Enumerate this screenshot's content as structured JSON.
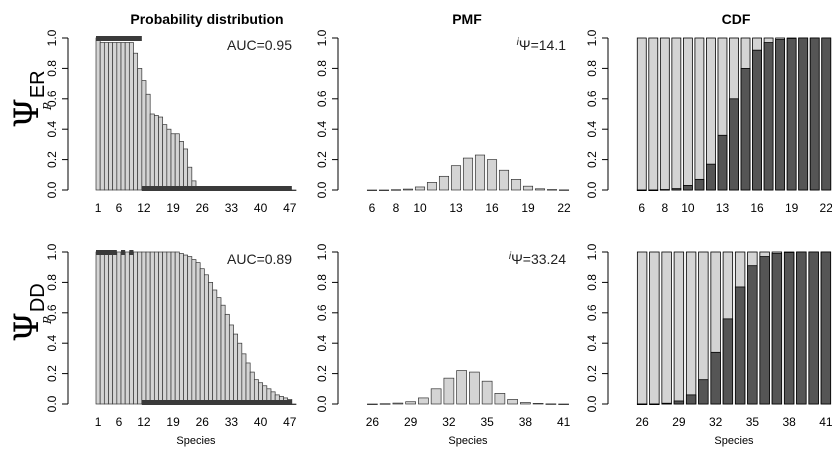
{
  "rows": [
    {
      "symbol": "Ψ",
      "subscript": "ER",
      "p_label": "P"
    },
    {
      "symbol": "Ψ",
      "subscript": "DD",
      "p_label": "P"
    }
  ],
  "chart_data": [
    {
      "id": "prob-er",
      "type": "bar",
      "title": "Probability distribution",
      "xlabel": "",
      "ylabel": "",
      "ylim": [
        0,
        1
      ],
      "yticks": [
        "0.0",
        "0.2",
        "0.4",
        "0.6",
        "0.8",
        "1.0"
      ],
      "xticks": [
        "1",
        "6",
        "12",
        "19",
        "26",
        "33",
        "40",
        "47"
      ],
      "annotation": "AUC=0.95",
      "species": [
        1,
        48
      ],
      "values": [
        1.0,
        0.97,
        0.97,
        0.97,
        0.97,
        0.97,
        0.97,
        0.97,
        0.97,
        0.9,
        0.8,
        0.72,
        0.63,
        0.5,
        0.49,
        0.48,
        0.43,
        0.4,
        0.37,
        0.37,
        0.32,
        0.27,
        0.15,
        0.06,
        0.0,
        0.0,
        0.0,
        0.0,
        0.0,
        0.0,
        0.0,
        0.0,
        0.0,
        0.0,
        0.0,
        0.0,
        0.0,
        0.0,
        0.0,
        0.0,
        0.0,
        0.0,
        0.0,
        0.0,
        0.0,
        0.0,
        0.0,
        0.0
      ],
      "top_segments": [
        [
          1,
          12
        ]
      ],
      "bottom_segments": [
        [
          12,
          48
        ]
      ]
    },
    {
      "id": "pmf-er",
      "type": "bar",
      "title": "PMF",
      "xlabel": "",
      "ylim": [
        0,
        1
      ],
      "yticks": [
        "0.0",
        "0.2",
        "0.4",
        "0.6",
        "0.8",
        "1.0"
      ],
      "xticks": [
        "6",
        "8",
        "10",
        "13",
        "16",
        "19",
        "22"
      ],
      "annotation_prefix": "i",
      "annotation": "Ψ=14.1",
      "x_start": 6,
      "values": [
        0.0,
        0.0,
        0.002,
        0.006,
        0.02,
        0.05,
        0.09,
        0.16,
        0.21,
        0.23,
        0.2,
        0.13,
        0.07,
        0.025,
        0.008,
        0.003,
        0.001
      ]
    },
    {
      "id": "cdf-er",
      "type": "bar",
      "title": "CDF",
      "xlabel": "",
      "ylim": [
        0,
        1
      ],
      "yticks": [
        "0.0",
        "0.2",
        "0.4",
        "0.6",
        "0.8",
        "1.0"
      ],
      "xticks": [
        "6",
        "8",
        "10",
        "13",
        "16",
        "19",
        "22"
      ],
      "x_start": 6,
      "values": [
        0.0,
        0.0,
        0.003,
        0.009,
        0.03,
        0.07,
        0.17,
        0.36,
        0.6,
        0.8,
        0.92,
        0.97,
        0.99,
        0.997,
        1.0,
        1.0,
        1.0
      ]
    },
    {
      "id": "prob-dd",
      "type": "bar",
      "title": "",
      "xlabel": "Species",
      "ylim": [
        0,
        1
      ],
      "yticks": [
        "0.0",
        "0.2",
        "0.4",
        "0.6",
        "0.8",
        "1.0"
      ],
      "xticks": [
        "1",
        "6",
        "12",
        "19",
        "26",
        "33",
        "40",
        "47"
      ],
      "annotation": "AUC=0.89",
      "species": [
        1,
        48
      ],
      "values": [
        1.0,
        1.0,
        1.0,
        1.0,
        1.0,
        1.0,
        1.0,
        1.0,
        1.0,
        1.0,
        1.0,
        1.0,
        1.0,
        1.0,
        1.0,
        1.0,
        1.0,
        1.0,
        1.0,
        1.0,
        0.99,
        0.98,
        0.97,
        0.95,
        0.93,
        0.89,
        0.85,
        0.8,
        0.75,
        0.7,
        0.65,
        0.59,
        0.52,
        0.46,
        0.4,
        0.33,
        0.27,
        0.21,
        0.16,
        0.14,
        0.12,
        0.1,
        0.08,
        0.06,
        0.05,
        0.04,
        0.03,
        0.0
      ],
      "top_segments": [
        [
          1,
          6
        ],
        [
          7,
          8
        ],
        [
          9,
          10
        ]
      ],
      "bottom_segments": [
        [
          12,
          48
        ]
      ]
    },
    {
      "id": "pmf-dd",
      "type": "bar",
      "title": "",
      "xlabel": "Species",
      "ylim": [
        0,
        1
      ],
      "yticks": [
        "0.0",
        "0.2",
        "0.4",
        "0.6",
        "0.8",
        "1.0"
      ],
      "xticks": [
        "26",
        "29",
        "32",
        "35",
        "38",
        "41"
      ],
      "annotation_prefix": "i",
      "annotation": "Ψ=33.24",
      "x_start": 26,
      "values": [
        0.0,
        0.002,
        0.006,
        0.015,
        0.04,
        0.1,
        0.17,
        0.22,
        0.21,
        0.15,
        0.07,
        0.03,
        0.01,
        0.004,
        0.001,
        0.0
      ]
    },
    {
      "id": "cdf-dd",
      "type": "bar",
      "title": "",
      "xlabel": "Species",
      "ylim": [
        0,
        1
      ],
      "yticks": [
        "0.0",
        "0.2",
        "0.4",
        "0.6",
        "0.8",
        "1.0"
      ],
      "xticks": [
        "26",
        "29",
        "32",
        "35",
        "38",
        "41"
      ],
      "x_start": 26,
      "values": [
        0.0,
        0.0,
        0.005,
        0.02,
        0.06,
        0.16,
        0.34,
        0.56,
        0.77,
        0.91,
        0.97,
        0.99,
        0.997,
        1.0,
        1.0,
        1.0
      ]
    }
  ],
  "colors": {
    "light": "#d4d4d4",
    "dark": "#555555",
    "axis": "#000000",
    "segment": "#3a3a3a"
  }
}
